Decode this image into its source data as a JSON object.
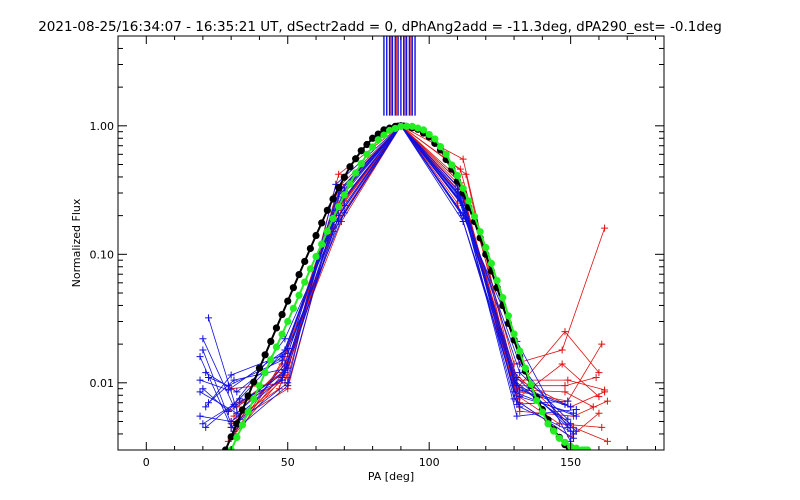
{
  "chart_data": {
    "type": "line",
    "title": "2021-08-25/16:34:07 - 16:35:21 UT, dSectr2add = 0, dPhAng2add = -11.3deg, dPA290_est= -0.1deg",
    "xlabel": "PA [deg]",
    "ylabel": "Normalized Flux",
    "xlim": [
      -10,
      183
    ],
    "ylim": [
      0.003,
      5.0
    ],
    "yscale": "log",
    "x_ticks": [
      0,
      50,
      100,
      150
    ],
    "x_tick_labels": [
      "0",
      "50",
      "100",
      "150"
    ],
    "y_ticks": [
      0.01,
      0.1,
      1.0
    ],
    "y_tick_labels": [
      "0.01",
      "0.10",
      "1.00"
    ],
    "grid": false,
    "colors": {
      "model_black": "#000000",
      "model_green": "#22ee22",
      "measured_red": "#e01010",
      "measured_blue": "#1010e0"
    },
    "model_black": {
      "x": [
        28,
        32,
        36,
        40,
        44,
        48,
        52,
        56,
        60,
        64,
        68,
        72,
        76,
        80,
        84,
        88,
        90,
        92,
        96,
        100,
        104,
        108,
        112,
        116,
        120,
        124,
        128,
        132,
        136,
        140,
        144,
        148,
        151
      ],
      "y": [
        0.003,
        0.0048,
        0.0079,
        0.013,
        0.021,
        0.034,
        0.055,
        0.088,
        0.14,
        0.22,
        0.33,
        0.48,
        0.64,
        0.8,
        0.93,
        0.99,
        1.0,
        0.99,
        0.94,
        0.82,
        0.65,
        0.46,
        0.3,
        0.18,
        0.1,
        0.055,
        0.029,
        0.016,
        0.0095,
        0.0062,
        0.0043,
        0.0033,
        0.003
      ]
    },
    "model_green": {
      "x": [
        30,
        34,
        38,
        42,
        46,
        50,
        54,
        58,
        62,
        66,
        70,
        74,
        78,
        82,
        86,
        90,
        94,
        98,
        102,
        106,
        110,
        114,
        118,
        122,
        126,
        130,
        134,
        138,
        142,
        146,
        150,
        154,
        156
      ],
      "y": [
        0.003,
        0.0047,
        0.0075,
        0.012,
        0.019,
        0.03,
        0.048,
        0.077,
        0.12,
        0.19,
        0.29,
        0.43,
        0.6,
        0.78,
        0.92,
        0.99,
        0.99,
        0.93,
        0.79,
        0.6,
        0.41,
        0.26,
        0.15,
        0.085,
        0.046,
        0.024,
        0.013,
        0.0073,
        0.0048,
        0.0037,
        0.0032,
        0.003,
        0.003
      ]
    },
    "series_red": [
      {
        "x": [
          30,
          49,
          68,
          90,
          111,
          130,
          147,
          162
        ],
        "y": [
          0.009,
          0.01,
          0.42,
          1.0,
          0.46,
          0.014,
          0.018,
          0.16
        ]
      },
      {
        "x": [
          31,
          48,
          69,
          90,
          112,
          131,
          148,
          160
        ],
        "y": [
          0.004,
          0.014,
          0.35,
          1.0,
          0.55,
          0.009,
          0.025,
          0.012
        ]
      },
      {
        "x": [
          29,
          50,
          67,
          90,
          110,
          132,
          149,
          161
        ],
        "y": [
          0.006,
          0.011,
          0.29,
          1.0,
          0.38,
          0.0085,
          0.0072,
          0.02
        ]
      },
      {
        "x": [
          32,
          49,
          68,
          90,
          111,
          130,
          150,
          162
        ],
        "y": [
          0.0038,
          0.016,
          0.24,
          1.0,
          0.32,
          0.011,
          0.0065,
          0.0085
        ]
      },
      {
        "x": [
          30,
          47,
          66,
          90,
          112,
          131,
          147,
          160
        ],
        "y": [
          0.005,
          0.009,
          0.2,
          1.0,
          0.28,
          0.0075,
          0.014,
          0.0078
        ]
      },
      {
        "x": [
          31,
          50,
          70,
          90,
          113,
          132,
          151,
          163
        ],
        "y": [
          0.0042,
          0.013,
          0.31,
          1.0,
          0.42,
          0.006,
          0.0055,
          0.0072
        ]
      },
      {
        "x": [
          33,
          48,
          69,
          90,
          110,
          130,
          148,
          159
        ],
        "y": [
          0.007,
          0.012,
          0.18,
          1.0,
          0.25,
          0.0095,
          0.0095,
          0.011
        ]
      },
      {
        "x": [
          29,
          49,
          67,
          90,
          111,
          131,
          146,
          161
        ],
        "y": [
          0.0035,
          0.0115,
          0.27,
          1.0,
          0.36,
          0.008,
          0.0048,
          0.0045
        ]
      },
      {
        "x": [
          31,
          50,
          68,
          90,
          112,
          130,
          149,
          162
        ],
        "y": [
          0.0055,
          0.0145,
          0.22,
          1.0,
          0.3,
          0.0105,
          0.0105,
          0.0088
        ]
      },
      {
        "x": [
          30,
          48,
          70,
          90,
          111,
          132,
          150,
          160
        ],
        "y": [
          0.0045,
          0.0105,
          0.26,
          1.0,
          0.34,
          0.007,
          0.0038,
          0.0058
        ]
      },
      {
        "x": [
          32,
          49,
          66,
          90,
          113,
          131,
          148,
          158
        ],
        "y": [
          0.0065,
          0.0125,
          0.16,
          1.0,
          0.22,
          0.0088,
          0.0085,
          0.0065
        ]
      },
      {
        "x": [
          30,
          50,
          69,
          90,
          110,
          130,
          151,
          163
        ],
        "y": [
          0.0048,
          0.009,
          0.33,
          1.0,
          0.4,
          0.012,
          0.0045,
          0.0035
        ]
      }
    ],
    "series_blue": [
      {
        "x": [
          20,
          31,
          49,
          68,
          90,
          112,
          131,
          150
        ],
        "y": [
          0.022,
          0.0065,
          0.012,
          0.3,
          1.0,
          0.2,
          0.021,
          0.0035
        ]
      },
      {
        "x": [
          19,
          30,
          50,
          67,
          90,
          110,
          132,
          151
        ],
        "y": [
          0.016,
          0.0045,
          0.01,
          0.35,
          1.0,
          0.3,
          0.014,
          0.004
        ]
      },
      {
        "x": [
          21,
          32,
          48,
          69,
          90,
          111,
          131,
          149
        ],
        "y": [
          0.012,
          0.0085,
          0.016,
          0.28,
          1.0,
          0.26,
          0.011,
          0.0045
        ]
      },
      {
        "x": [
          20,
          29,
          49,
          70,
          90,
          113,
          130,
          152
        ],
        "y": [
          0.009,
          0.006,
          0.022,
          0.24,
          1.0,
          0.22,
          0.0085,
          0.0055
        ]
      },
      {
        "x": [
          22,
          31,
          50,
          68,
          90,
          112,
          132,
          150
        ],
        "y": [
          0.007,
          0.0105,
          0.013,
          0.2,
          1.0,
          0.18,
          0.0065,
          0.0042
        ]
      },
      {
        "x": [
          19,
          30,
          48,
          66,
          90,
          110,
          131,
          148
        ],
        "y": [
          0.0055,
          0.005,
          0.011,
          0.17,
          1.0,
          0.32,
          0.0095,
          0.0068
        ]
      },
      {
        "x": [
          21,
          33,
          49,
          69,
          90,
          111,
          130,
          151
        ],
        "y": [
          0.0045,
          0.0075,
          0.018,
          0.26,
          1.0,
          0.28,
          0.0075,
          0.0037
        ]
      },
      {
        "x": [
          20,
          31,
          50,
          67,
          90,
          112,
          132,
          149
        ],
        "y": [
          0.018,
          0.0042,
          0.0095,
          0.22,
          1.0,
          0.24,
          0.012,
          0.0052
        ]
      },
      {
        "x": [
          22,
          29,
          48,
          70,
          90,
          113,
          131,
          152
        ],
        "y": [
          0.011,
          0.0095,
          0.015,
          0.31,
          1.0,
          0.19,
          0.0055,
          0.0062
        ]
      },
      {
        "x": [
          19,
          32,
          49,
          68,
          90,
          110,
          130,
          150
        ],
        "y": [
          0.0085,
          0.0058,
          0.0125,
          0.18,
          1.0,
          0.34,
          0.01,
          0.0048
        ]
      },
      {
        "x": [
          21,
          30,
          50,
          66,
          90,
          111,
          132,
          151
        ],
        "y": [
          0.0065,
          0.0115,
          0.017,
          0.15,
          1.0,
          0.21,
          0.0078,
          0.0058
        ]
      },
      {
        "x": [
          20,
          31,
          48,
          69,
          90,
          112,
          131,
          149
        ],
        "y": [
          0.0048,
          0.0068,
          0.0105,
          0.33,
          1.0,
          0.27,
          0.0068,
          0.0072
        ]
      },
      {
        "x": [
          22,
          33,
          49,
          67,
          90,
          113,
          130,
          152
        ],
        "y": [
          0.032,
          0.0052,
          0.014,
          0.27,
          1.0,
          0.23,
          0.0105,
          0.0042
        ]
      },
      {
        "x": [
          19,
          29,
          50,
          70,
          90,
          110,
          132,
          150
        ],
        "y": [
          0.0105,
          0.0088,
          0.0185,
          0.21,
          1.0,
          0.29,
          0.0088,
          0.0065
        ]
      }
    ],
    "center_spikes": {
      "blue_x": [
        84,
        85,
        86,
        87,
        88,
        89,
        90,
        91,
        92,
        93,
        94,
        95
      ],
      "red_x": [
        86.5,
        88.5,
        91.5,
        93.5
      ],
      "y_from": 1.2,
      "y_to": 5.0
    }
  }
}
